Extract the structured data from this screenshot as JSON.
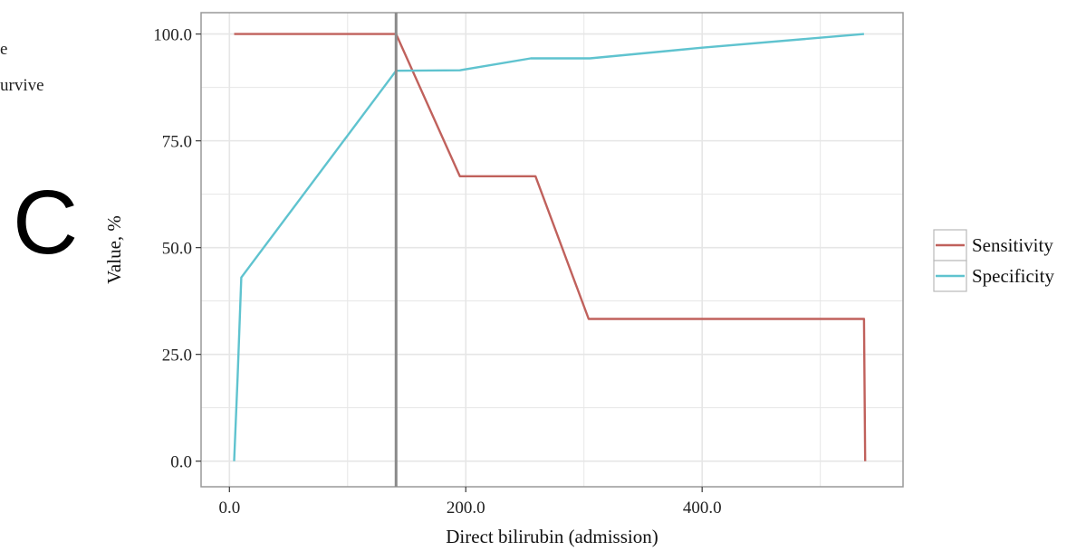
{
  "panel": {
    "letter": "C",
    "cut_text": [
      "e",
      "urvive"
    ]
  },
  "colors": {
    "sensitivity": "#c0615c",
    "specificity": "#5fc3cf",
    "cutoff_line": "#8a8a8a",
    "grid": "#e6e6e6",
    "frame": "#999999"
  },
  "chart_data": {
    "type": "line",
    "title": "",
    "xlabel": "Direct bilirubin (admission)",
    "ylabel": "Value, %",
    "xlim": [
      -24,
      570
    ],
    "ylim": [
      -6,
      105
    ],
    "x_ticks": [
      0,
      200,
      400
    ],
    "x_tick_labels": [
      "0.0",
      "200.0",
      "400.0"
    ],
    "y_ticks": [
      0,
      25,
      50,
      75,
      100
    ],
    "y_tick_labels": [
      "0.0",
      "25.0",
      "50.0",
      "75.0",
      "100.0"
    ],
    "grid": true,
    "legend_position": "right",
    "cutoff_x": 141,
    "series": [
      {
        "name": "Sensitivity",
        "color_key": "sensitivity",
        "points": [
          [
            4,
            100
          ],
          [
            141,
            100
          ],
          [
            195,
            66.7
          ],
          [
            259,
            66.7
          ],
          [
            304,
            33.3
          ],
          [
            537,
            33.3
          ],
          [
            538,
            0
          ]
        ]
      },
      {
        "name": "Specificity",
        "color_key": "specificity",
        "points": [
          [
            4,
            0
          ],
          [
            7,
            20
          ],
          [
            10,
            43
          ],
          [
            141,
            91.4
          ],
          [
            195,
            91.5
          ],
          [
            255,
            94.3
          ],
          [
            305,
            94.3
          ],
          [
            400,
            96.8
          ],
          [
            537,
            100
          ]
        ]
      }
    ]
  }
}
